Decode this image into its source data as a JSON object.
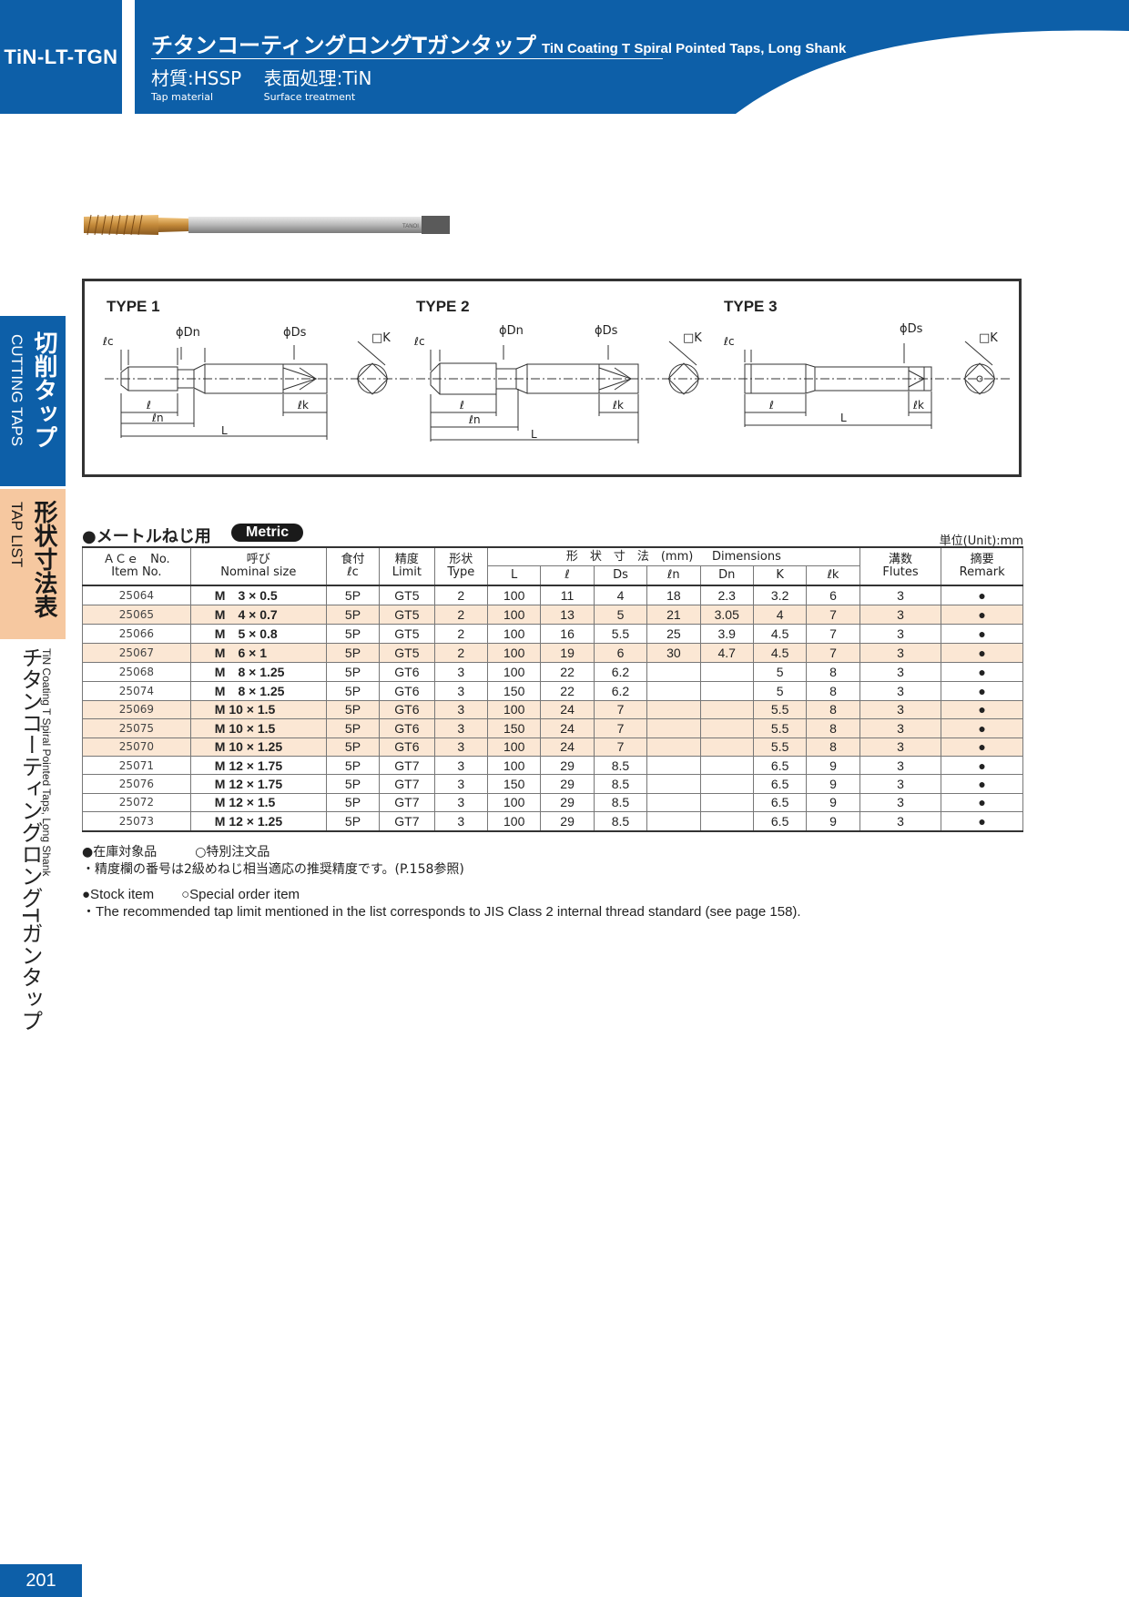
{
  "header": {
    "code": "TiN-LT-TGN",
    "title_jp": "チタンコーティングロングTガンタップ",
    "title_en": "TiN Coating T Spiral Pointed Taps, Long Shank",
    "material_label": "材質:HSSP",
    "material_sub": "Tap material",
    "surface_label": "表面処理:TiN",
    "surface_sub": "Surface treatment"
  },
  "side_tabs": {
    "cutting_jp": "切削タップ",
    "cutting_en": "CUTTING TAPS",
    "list_jp": "形状寸法表",
    "list_en": "TAP LIST",
    "desc_jp": "チタンコーティングロングTガンタップ",
    "desc_en": "TiN Coating T Spiral Pointed Taps, Long Shank"
  },
  "product_image": {
    "marking": "TANOI"
  },
  "diagram": {
    "type1": "TYPE 1",
    "type2": "TYPE 2",
    "type3": "TYPE 3",
    "phi_dn": "ϕDn",
    "phi_ds": "ϕDs",
    "sq_k": "□K",
    "lc": "ℓc",
    "l": "ℓ",
    "ln": "ℓn",
    "lk": "ℓk",
    "L": "L"
  },
  "table_section": {
    "title": "●メートルねじ用",
    "badge": "Metric",
    "unit": "単位(Unit):mm"
  },
  "table": {
    "headers": {
      "item_jp": "ＡＣｅ　No.",
      "item_en": "Item No.",
      "nominal_jp": "呼び",
      "nominal_en": "Nominal size",
      "chamfer_jp": "食付",
      "chamfer_en": "ℓc",
      "limit_jp": "精度",
      "limit_en": "Limit",
      "type_jp": "形状",
      "type_en": "Type",
      "dims_jp": "形　状　寸　法　(mm)",
      "dims_en": "Dimensions",
      "flutes_jp": "溝数",
      "flutes_en": "Flutes",
      "remark_jp": "摘要",
      "remark_en": "Remark",
      "sub": [
        "L",
        "ℓ",
        "Ds",
        "ℓn",
        "Dn",
        "K",
        "ℓk"
      ]
    },
    "rows": [
      {
        "item": "25064",
        "size": "M　3 × 0.5",
        "chamfer": "5P",
        "limit": "GT5",
        "type": "2",
        "L": "100",
        "l": "11",
        "Ds": "4",
        "ln": "18",
        "Dn": "2.3",
        "K": "3.2",
        "lk": "6",
        "flutes": "3",
        "remark": "●",
        "hl": false
      },
      {
        "item": "25065",
        "size": "M　4 × 0.7",
        "chamfer": "5P",
        "limit": "GT5",
        "type": "2",
        "L": "100",
        "l": "13",
        "Ds": "5",
        "ln": "21",
        "Dn": "3.05",
        "K": "4",
        "lk": "7",
        "flutes": "3",
        "remark": "●",
        "hl": true
      },
      {
        "item": "25066",
        "size": "M　5 × 0.8",
        "chamfer": "5P",
        "limit": "GT5",
        "type": "2",
        "L": "100",
        "l": "16",
        "Ds": "5.5",
        "ln": "25",
        "Dn": "3.9",
        "K": "4.5",
        "lk": "7",
        "flutes": "3",
        "remark": "●",
        "hl": false
      },
      {
        "item": "25067",
        "size": "M　6 × 1",
        "chamfer": "5P",
        "limit": "GT5",
        "type": "2",
        "L": "100",
        "l": "19",
        "Ds": "6",
        "ln": "30",
        "Dn": "4.7",
        "K": "4.5",
        "lk": "7",
        "flutes": "3",
        "remark": "●",
        "hl": true
      },
      {
        "item": "25068",
        "size": "M　8 × 1.25",
        "chamfer": "5P",
        "limit": "GT6",
        "type": "3",
        "L": "100",
        "l": "22",
        "Ds": "6.2",
        "ln": "",
        "Dn": "",
        "K": "5",
        "lk": "8",
        "flutes": "3",
        "remark": "●",
        "hl": false
      },
      {
        "item": "25074",
        "size": "M　8 × 1.25",
        "chamfer": "5P",
        "limit": "GT6",
        "type": "3",
        "L": "150",
        "l": "22",
        "Ds": "6.2",
        "ln": "",
        "Dn": "",
        "K": "5",
        "lk": "8",
        "flutes": "3",
        "remark": "●",
        "hl": false
      },
      {
        "item": "25069",
        "size": "M 10 × 1.5",
        "chamfer": "5P",
        "limit": "GT6",
        "type": "3",
        "L": "100",
        "l": "24",
        "Ds": "7",
        "ln": "",
        "Dn": "",
        "K": "5.5",
        "lk": "8",
        "flutes": "3",
        "remark": "●",
        "hl": true
      },
      {
        "item": "25075",
        "size": "M 10 × 1.5",
        "chamfer": "5P",
        "limit": "GT6",
        "type": "3",
        "L": "150",
        "l": "24",
        "Ds": "7",
        "ln": "",
        "Dn": "",
        "K": "5.5",
        "lk": "8",
        "flutes": "3",
        "remark": "●",
        "hl": true
      },
      {
        "item": "25070",
        "size": "M 10 × 1.25",
        "chamfer": "5P",
        "limit": "GT6",
        "type": "3",
        "L": "100",
        "l": "24",
        "Ds": "7",
        "ln": "",
        "Dn": "",
        "K": "5.5",
        "lk": "8",
        "flutes": "3",
        "remark": "●",
        "hl": true
      },
      {
        "item": "25071",
        "size": "M 12 × 1.75",
        "chamfer": "5P",
        "limit": "GT7",
        "type": "3",
        "L": "100",
        "l": "29",
        "Ds": "8.5",
        "ln": "",
        "Dn": "",
        "K": "6.5",
        "lk": "9",
        "flutes": "3",
        "remark": "●",
        "hl": false
      },
      {
        "item": "25076",
        "size": "M 12 × 1.75",
        "chamfer": "5P",
        "limit": "GT7",
        "type": "3",
        "L": "150",
        "l": "29",
        "Ds": "8.5",
        "ln": "",
        "Dn": "",
        "K": "6.5",
        "lk": "9",
        "flutes": "3",
        "remark": "●",
        "hl": false
      },
      {
        "item": "25072",
        "size": "M 12 × 1.5",
        "chamfer": "5P",
        "limit": "GT7",
        "type": "3",
        "L": "100",
        "l": "29",
        "Ds": "8.5",
        "ln": "",
        "Dn": "",
        "K": "6.5",
        "lk": "9",
        "flutes": "3",
        "remark": "●",
        "hl": false
      },
      {
        "item": "25073",
        "size": "M 12 × 1.25",
        "chamfer": "5P",
        "limit": "GT7",
        "type": "3",
        "L": "100",
        "l": "29",
        "Ds": "8.5",
        "ln": "",
        "Dn": "",
        "K": "6.5",
        "lk": "9",
        "flutes": "3",
        "remark": "●",
        "hl": false
      }
    ]
  },
  "notes": {
    "legend_jp": "●在庫対象品　　　○特別注文品",
    "limit_note_jp": "・精度欄の番号は2級めねじ相当適応の推奨精度です。(P.158参照)",
    "legend_en": "●Stock item　　○Special order item",
    "limit_note_en": "・The recommended tap limit mentioned in the list corresponds to JIS Class 2 internal thread standard (see page 158)."
  },
  "page_number": "201",
  "colors": {
    "brand_blue": "#0d5fa8",
    "tab_peach": "#f6c8a0",
    "row_highlight": "#fbe7d4"
  }
}
